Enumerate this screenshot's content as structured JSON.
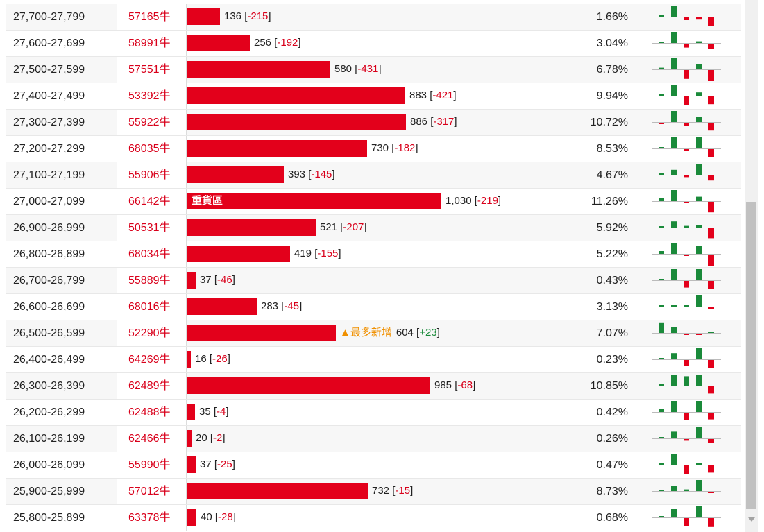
{
  "colors": {
    "bar": "#e3001b",
    "negative": "#d9001b",
    "positive": "#1a8a3a",
    "note": "#f09000",
    "spark_up": "#1a8a3a",
    "spark_down": "#e3001b"
  },
  "rows": [
    {
      "range": "27,700-27,799",
      "bull": "57165牛",
      "count": "136",
      "change": "-215",
      "pct": "1.66%",
      "spark": [
        0.05,
        1,
        -0.25,
        -0.2,
        -0.8
      ]
    },
    {
      "range": "27,600-27,699",
      "bull": "58991牛",
      "count": "256",
      "change": "-192",
      "pct": "3.04%",
      "spark": [
        0.05,
        1,
        -0.35,
        0.15,
        -0.5
      ]
    },
    {
      "range": "27,500-27,599",
      "bull": "57551牛",
      "count": "580",
      "change": "-431",
      "pct": "6.78%",
      "spark": [
        0.15,
        1,
        -0.8,
        0.5,
        -1
      ]
    },
    {
      "range": "27,400-27,499",
      "bull": "53392牛",
      "count": "883",
      "change": "-421",
      "pct": "9.94%",
      "spark": [
        0.1,
        1,
        -0.8,
        0.3,
        -0.7
      ]
    },
    {
      "range": "27,300-27,399",
      "bull": "55922牛",
      "count": "886",
      "change": "-317",
      "pct": "10.72%",
      "spark": [
        -0.05,
        1,
        -0.3,
        0.5,
        -0.7
      ]
    },
    {
      "range": "27,200-27,299",
      "bull": "68035牛",
      "count": "730",
      "change": "-182",
      "pct": "8.53%",
      "spark": [
        0.05,
        1,
        -0.1,
        1,
        -0.7
      ]
    },
    {
      "range": "27,100-27,199",
      "bull": "55906牛",
      "count": "393",
      "change": "-145",
      "pct": "4.67%",
      "spark": [
        0.15,
        0.45,
        -0.15,
        1,
        -0.45
      ]
    },
    {
      "range": "27,000-27,099",
      "bull": "66142牛",
      "count": "1,030",
      "change": "-219",
      "pct": "11.26%",
      "tag": "重貨區",
      "spark": [
        0.25,
        1,
        -0.1,
        0.4,
        -0.95
      ]
    },
    {
      "range": "26,900-26,999",
      "bull": "50531牛",
      "count": "521",
      "change": "-207",
      "pct": "5.92%",
      "spark": [
        0.05,
        0.55,
        0.15,
        0.25,
        -0.9
      ]
    },
    {
      "range": "26,800-26,899",
      "bull": "68034牛",
      "count": "419",
      "change": "-155",
      "pct": "5.22%",
      "spark": [
        0.25,
        1,
        -0.05,
        0.75,
        -1
      ]
    },
    {
      "range": "26,700-26,799",
      "bull": "55889牛",
      "count": "37",
      "change": "-46",
      "pct": "0.43%",
      "spark": [
        0.05,
        1,
        -0.6,
        1,
        -0.7
      ]
    },
    {
      "range": "26,600-26,699",
      "bull": "68016牛",
      "count": "283",
      "change": "-45",
      "pct": "3.13%",
      "spark": [
        0.05,
        0.05,
        0.05,
        1,
        -0.1
      ]
    },
    {
      "range": "26,500-26,599",
      "bull": "52290牛",
      "count": "604",
      "change": "+23",
      "pct": "7.07%",
      "note": "▲最多新增",
      "spark": [
        0.95,
        0.55,
        -0.1,
        -0.1,
        0.05
      ]
    },
    {
      "range": "26,400-26,499",
      "bull": "64269牛",
      "count": "16",
      "change": "-26",
      "pct": "0.23%",
      "spark": [
        0.05,
        0.55,
        -0.5,
        1,
        -0.7
      ]
    },
    {
      "range": "26,300-26,399",
      "bull": "62489牛",
      "count": "985",
      "change": "-68",
      "pct": "10.85%",
      "spark": [
        0.05,
        1,
        0.85,
        0.95,
        -0.65
      ]
    },
    {
      "range": "26,200-26,299",
      "bull": "62488牛",
      "count": "35",
      "change": "-4",
      "pct": "0.42%",
      "spark": [
        0.3,
        1,
        -0.65,
        1,
        -0.6
      ]
    },
    {
      "range": "26,100-26,199",
      "bull": "62466牛",
      "count": "20",
      "change": "-2",
      "pct": "0.26%",
      "spark": [
        0.05,
        0.6,
        -0.15,
        1,
        -0.35
      ]
    },
    {
      "range": "26,000-26,099",
      "bull": "55990牛",
      "count": "37",
      "change": "-25",
      "pct": "0.47%",
      "spark": [
        0.05,
        1,
        -0.75,
        0.05,
        -0.65
      ]
    },
    {
      "range": "25,900-25,999",
      "bull": "57012牛",
      "count": "732",
      "change": "-15",
      "pct": "8.73%",
      "spark": [
        0.05,
        0.45,
        0.15,
        1,
        -0.05
      ]
    },
    {
      "range": "25,800-25,899",
      "bull": "63378牛",
      "count": "40",
      "change": "-28",
      "pct": "0.68%",
      "spark": [
        0.05,
        0.75,
        -0.75,
        1,
        -0.8
      ]
    }
  ]
}
